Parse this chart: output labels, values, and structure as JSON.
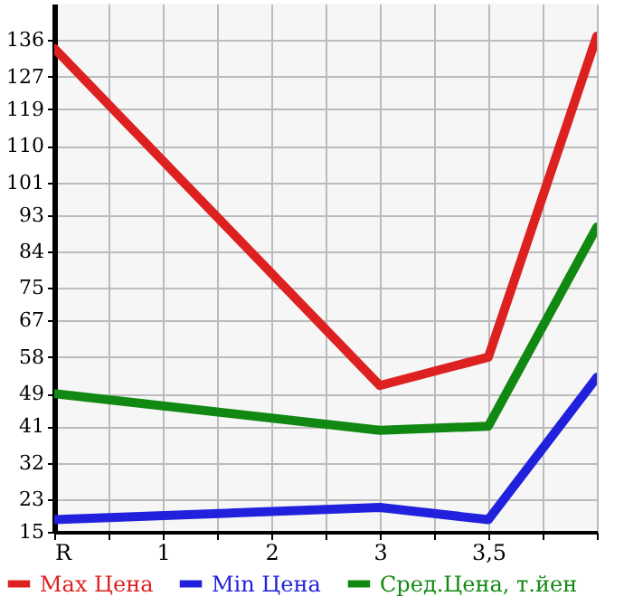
{
  "chart_data": {
    "type": "line",
    "categories": [
      "R",
      "1",
      "2",
      "3",
      "3,5",
      null
    ],
    "series": [
      {
        "name": "Max Цена",
        "color": "#dd2121",
        "values": [
          134,
          null,
          null,
          51,
          58,
          137
        ]
      },
      {
        "name": "Min Цена",
        "color": "#2121dd",
        "values": [
          18,
          null,
          null,
          21,
          18,
          53
        ]
      },
      {
        "name": "Сред.Цена, т.йен",
        "color": "#118811",
        "values": [
          49,
          null,
          null,
          40,
          41,
          90
        ]
      }
    ],
    "ylim": [
      15,
      145
    ],
    "yticks": [
      15,
      23,
      32,
      41,
      49,
      58,
      67,
      75,
      84,
      93,
      101,
      110,
      119,
      127,
      136
    ],
    "grid": true,
    "legend": "bottom",
    "marker": "none",
    "line_style": "solid"
  }
}
